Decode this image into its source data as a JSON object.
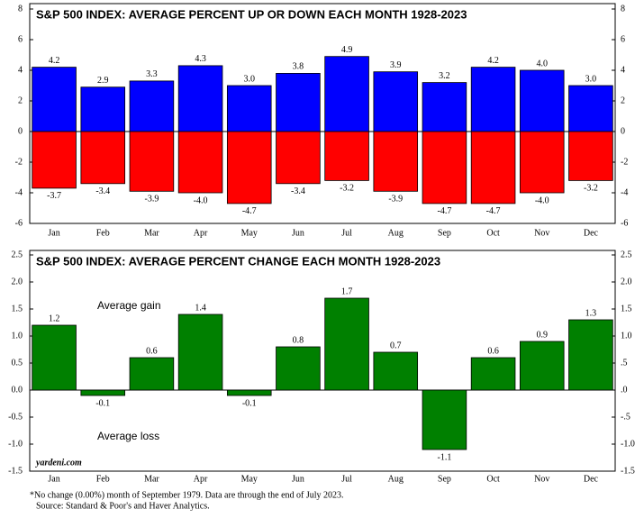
{
  "chart_data": [
    {
      "type": "bar",
      "title": "S&P 500 INDEX: AVERAGE PERCENT UP OR DOWN EACH MONTH 1928-2023",
      "categories": [
        "Jan",
        "Feb",
        "Mar",
        "Apr",
        "May",
        "Jun",
        "Jul",
        "Aug",
        "Sep",
        "Oct",
        "Nov",
        "Dec"
      ],
      "series": [
        {
          "color": "#0000ff",
          "values": [
            4.2,
            2.9,
            3.3,
            4.3,
            3.0,
            3.8,
            4.9,
            3.9,
            3.2,
            4.2,
            4.0,
            3.0
          ],
          "value_labels": [
            "4.2",
            "2.9",
            "3.3",
            "4.3",
            "3.0",
            "3.8",
            "4.9",
            "3.9",
            "3.2",
            "4.2",
            "4.0",
            "3.0"
          ]
        },
        {
          "color": "#ff0000",
          "values": [
            -3.7,
            -3.4,
            -3.9,
            -4.0,
            -4.7,
            -3.4,
            -3.2,
            -3.9,
            -4.7,
            -4.7,
            -4.0,
            -3.2
          ],
          "value_labels": [
            "-3.7",
            "-3.4",
            "-3.9",
            "-4.0",
            "-4.7",
            "-3.4",
            "-3.2",
            "-3.9",
            "-4.7",
            "-4.7",
            "-4.0",
            "-3.2"
          ]
        }
      ],
      "ylim": [
        -6,
        8
      ],
      "yticks": [
        -6,
        -4,
        -2,
        0,
        2,
        4,
        6,
        8
      ],
      "y2lim": [
        -6,
        8
      ],
      "y2ticks": [
        -6,
        -4,
        -2,
        0,
        2,
        4,
        6,
        8
      ]
    },
    {
      "type": "bar",
      "title": "S&P 500 INDEX: AVERAGE PERCENT CHANGE EACH MONTH 1928-2023",
      "categories": [
        "Jan",
        "Feb",
        "Mar",
        "Apr",
        "May",
        "Jun",
        "Jul",
        "Aug",
        "Sep",
        "Oct",
        "Nov",
        "Dec"
      ],
      "series": [
        {
          "color": "#008000",
          "values": [
            1.2,
            -0.1,
            0.6,
            1.4,
            -0.1,
            0.8,
            1.7,
            0.7,
            -1.1,
            0.6,
            0.9,
            1.3
          ]
        }
      ],
      "ylim": [
        -1.5,
        2.5
      ],
      "yticks": [
        {
          "value": -1.5,
          "label": "-1.5"
        },
        {
          "value": -1,
          "label": "-1.0"
        },
        {
          "value": -0.5,
          "label": "-0.5"
        },
        {
          "value": 0,
          "label": "0.0"
        },
        {
          "value": 0.5,
          "label": "0.5"
        },
        {
          "value": 1,
          "label": "1.0"
        },
        {
          "value": 1.5,
          "label": "1.5"
        },
        {
          "value": 2,
          "label": "2.0"
        },
        {
          "value": 2.5,
          "label": "2.5"
        }
      ],
      "y2lim": [
        -1.5,
        2.5
      ],
      "y2ticks": [
        {
          "value": -1.5,
          "label": "-1.5"
        },
        {
          "value": -1,
          "label": "-1.0"
        },
        {
          "value": -0.5,
          "label": "-.5"
        },
        {
          "value": 0,
          "label": ".0"
        },
        {
          "value": 0.5,
          "label": ".5"
        },
        {
          "value": 1,
          "label": "1.0"
        },
        {
          "value": 1.5,
          "label": "1.5"
        },
        {
          "value": 2,
          "label": "2.0"
        },
        {
          "value": 2.5,
          "label": "2.5"
        }
      ],
      "annotations": [
        "Average gain",
        "Average loss",
        "yardeni.com"
      ]
    }
  ],
  "footnotes": [
    "*No change (0.00%) month of September 1979. Data are through the end of July 2023.",
    "Source: Standard & Poor's and Haver Analytics."
  ]
}
